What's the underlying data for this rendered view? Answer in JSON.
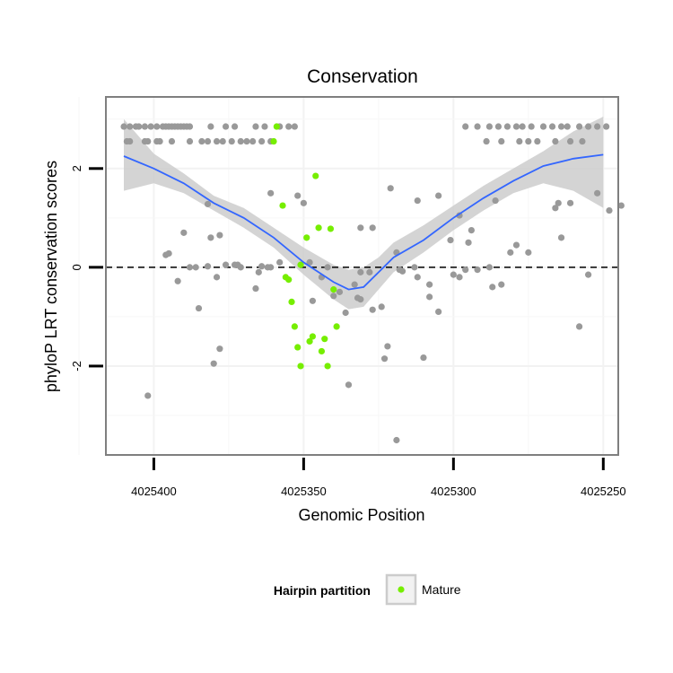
{
  "chart_data": {
    "type": "scatter",
    "title": "Conservation",
    "xlabel": "Genomic Position",
    "ylabel": "phyloP LRT conservation scores",
    "x_reversed": true,
    "xlim": [
      4025416,
      4025245
    ],
    "ylim": [
      -3.8,
      3.45
    ],
    "x_ticks": [
      4025400,
      4025350,
      4025300,
      4025250
    ],
    "x_tick_labels": [
      "4025400",
      "4025350",
      "4025300",
      "4025250"
    ],
    "y_ticks": [
      -2,
      0,
      2
    ],
    "y_tick_labels": [
      "-2",
      "0",
      "2"
    ],
    "reference_line": {
      "y": 0,
      "style": "dashed"
    },
    "grid": true,
    "legend": {
      "title": "Hairpin partition",
      "position": "bottom",
      "entries": [
        {
          "label": "Mature",
          "color": "#76ee00"
        }
      ]
    },
    "colors": {
      "other": "#999999",
      "mature": "#76ee00",
      "smooth_line": "#3366ff",
      "smooth_band": "#cccccc",
      "panel_border": "#7f7f7f",
      "grid": "#f2f2f2"
    },
    "series": [
      {
        "name": "",
        "color": "#999999",
        "points": [
          [
            4025410,
            2.85
          ],
          [
            4025408,
            2.85
          ],
          [
            4025406,
            2.85
          ],
          [
            4025405,
            2.85
          ],
          [
            4025403,
            2.85
          ],
          [
            4025401,
            2.85
          ],
          [
            4025399,
            2.85
          ],
          [
            4025397,
            2.85
          ],
          [
            4025396,
            2.85
          ],
          [
            4025395,
            2.85
          ],
          [
            4025394,
            2.85
          ],
          [
            4025393,
            2.85
          ],
          [
            4025392,
            2.85
          ],
          [
            4025391,
            2.85
          ],
          [
            4025390,
            2.85
          ],
          [
            4025389,
            2.85
          ],
          [
            4025388,
            2.85
          ],
          [
            4025409,
            2.55
          ],
          [
            4025408,
            2.55
          ],
          [
            4025403,
            2.55
          ],
          [
            4025402,
            2.55
          ],
          [
            4025399,
            2.55
          ],
          [
            4025398,
            2.55
          ],
          [
            4025394,
            2.55
          ],
          [
            4025388,
            2.55
          ],
          [
            4025381,
            2.85
          ],
          [
            4025376,
            2.85
          ],
          [
            4025373,
            2.85
          ],
          [
            4025366,
            2.85
          ],
          [
            4025363,
            2.85
          ],
          [
            4025358,
            2.85
          ],
          [
            4025355,
            2.85
          ],
          [
            4025353,
            2.85
          ],
          [
            4025384,
            2.55
          ],
          [
            4025382,
            2.55
          ],
          [
            4025379,
            2.55
          ],
          [
            4025377,
            2.55
          ],
          [
            4025374,
            2.55
          ],
          [
            4025371,
            2.55
          ],
          [
            4025369,
            2.55
          ],
          [
            4025367,
            2.55
          ],
          [
            4025364,
            2.55
          ],
          [
            4025361,
            2.55
          ],
          [
            4025296,
            2.85
          ],
          [
            4025292,
            2.85
          ],
          [
            4025288,
            2.85
          ],
          [
            4025285,
            2.85
          ],
          [
            4025282,
            2.85
          ],
          [
            4025279,
            2.85
          ],
          [
            4025277,
            2.85
          ],
          [
            4025274,
            2.85
          ],
          [
            4025270,
            2.85
          ],
          [
            4025267,
            2.85
          ],
          [
            4025264,
            2.85
          ],
          [
            4025289,
            2.55
          ],
          [
            4025284,
            2.55
          ],
          [
            4025278,
            2.55
          ],
          [
            4025275,
            2.55
          ],
          [
            4025272,
            2.55
          ],
          [
            4025266,
            2.55
          ],
          [
            4025261,
            2.55
          ],
          [
            4025257,
            2.55
          ],
          [
            4025262,
            2.85
          ],
          [
            4025258,
            2.85
          ],
          [
            4025255,
            2.85
          ],
          [
            4025252,
            2.85
          ],
          [
            4025249,
            2.85
          ],
          [
            4025361,
            1.5
          ],
          [
            4025382,
            1.28
          ],
          [
            4025373,
            0.05
          ],
          [
            4025372,
            0.05
          ],
          [
            4025395,
            0.28
          ],
          [
            4025396,
            0.25
          ],
          [
            4025392,
            -0.28
          ],
          [
            4025390,
            0.7
          ],
          [
            4025388,
            0.0
          ],
          [
            4025382,
            0.02
          ],
          [
            4025378,
            0.65
          ],
          [
            4025379,
            -0.2
          ],
          [
            4025385,
            -0.83
          ],
          [
            4025378,
            -1.65
          ],
          [
            4025376,
            0.05
          ],
          [
            4025366,
            -0.43
          ],
          [
            4025361,
            0.0
          ],
          [
            4025365,
            -0.1
          ],
          [
            4025364,
            0.02
          ],
          [
            4025362,
            0.0
          ],
          [
            4025352,
            1.45
          ],
          [
            4025350,
            1.3
          ],
          [
            4025348,
            0.1
          ],
          [
            4025347,
            -0.68
          ],
          [
            4025344,
            -0.2
          ],
          [
            4025338,
            -0.5
          ],
          [
            4025340,
            -0.58
          ],
          [
            4025336,
            -0.92
          ],
          [
            4025333,
            -0.35
          ],
          [
            4025335,
            -2.38
          ],
          [
            4025331,
            -0.65
          ],
          [
            4025331,
            -0.1
          ],
          [
            4025332,
            -0.62
          ],
          [
            4025327,
            -0.86
          ],
          [
            4025321,
            1.6
          ],
          [
            4025327,
            0.8
          ],
          [
            4025324,
            -0.8
          ],
          [
            4025323,
            -1.85
          ],
          [
            4025322,
            -1.6
          ],
          [
            4025319,
            0.3
          ],
          [
            4025318,
            -0.05
          ],
          [
            4025317,
            -0.08
          ],
          [
            4025313,
            0.0
          ],
          [
            4025312,
            -0.2
          ],
          [
            4025308,
            -0.6
          ],
          [
            4025305,
            -0.9
          ],
          [
            4025298,
            1.05
          ],
          [
            4025295,
            0.5
          ],
          [
            4025292,
            -0.05
          ],
          [
            4025287,
            -0.4
          ],
          [
            4025284,
            -0.35
          ],
          [
            4025281,
            0.3
          ],
          [
            4025279,
            0.45
          ],
          [
            4025275,
            0.3
          ],
          [
            4025266,
            1.2
          ],
          [
            4025264,
            0.6
          ],
          [
            4025261,
            1.3
          ],
          [
            4025258,
            -1.2
          ],
          [
            4025255,
            -0.15
          ],
          [
            4025252,
            1.5
          ],
          [
            4025248,
            1.15
          ],
          [
            4025244,
            1.25
          ],
          [
            4025288,
            0.0
          ],
          [
            4025312,
            1.35
          ],
          [
            4025305,
            1.45
          ],
          [
            4025300,
            -0.15
          ],
          [
            4025310,
            -1.83
          ],
          [
            4025294,
            0.75
          ],
          [
            4025286,
            1.35
          ],
          [
            4025265,
            1.3
          ],
          [
            4025402,
            -2.6
          ],
          [
            4025380,
            -1.95
          ],
          [
            4025386,
            0.0
          ],
          [
            4025298,
            -0.2
          ],
          [
            4025319,
            -3.5
          ],
          [
            4025296,
            -0.05
          ],
          [
            4025331,
            0.8
          ],
          [
            4025371,
            0.0
          ],
          [
            4025358,
            0.1
          ],
          [
            4025342,
            0.0
          ],
          [
            4025381,
            0.6
          ],
          [
            4025328,
            -0.1
          ],
          [
            4025301,
            0.55
          ],
          [
            4025308,
            -0.35
          ]
        ]
      },
      {
        "name": "Mature",
        "color": "#76ee00",
        "points": [
          [
            4025359,
            2.85
          ],
          [
            4025360,
            2.55
          ],
          [
            4025357,
            1.25
          ],
          [
            4025356,
            -0.2
          ],
          [
            4025355,
            -0.25
          ],
          [
            4025354,
            -0.7
          ],
          [
            4025353,
            -1.2
          ],
          [
            4025352,
            -1.62
          ],
          [
            4025351,
            -2.0
          ],
          [
            4025349,
            0.6
          ],
          [
            4025348,
            -1.5
          ],
          [
            4025347,
            -1.4
          ],
          [
            4025346,
            1.85
          ],
          [
            4025345,
            0.8
          ],
          [
            4025344,
            -1.7
          ],
          [
            4025343,
            -1.45
          ],
          [
            4025342,
            -2.0
          ],
          [
            4025341,
            0.78
          ],
          [
            4025340,
            -0.45
          ],
          [
            4025339,
            -1.2
          ],
          [
            4025351,
            0.05
          ]
        ]
      }
    ],
    "smooth": {
      "method": "loess",
      "x": [
        4025410,
        4025400,
        4025390,
        4025380,
        4025370,
        4025360,
        4025350,
        4025340,
        4025335,
        4025330,
        4025325,
        4025320,
        4025310,
        4025300,
        4025290,
        4025280,
        4025270,
        4025260,
        4025250
      ],
      "y": [
        2.25,
        2.0,
        1.7,
        1.3,
        1.0,
        0.6,
        0.1,
        -0.3,
        -0.45,
        -0.4,
        -0.1,
        0.2,
        0.55,
        1.0,
        1.4,
        1.75,
        2.05,
        2.2,
        2.28
      ],
      "lower": [
        1.55,
        1.7,
        1.5,
        1.15,
        0.8,
        0.4,
        -0.15,
        -0.65,
        -0.85,
        -0.8,
        -0.45,
        -0.1,
        0.3,
        0.75,
        1.15,
        1.5,
        1.7,
        1.55,
        1.2
      ],
      "upper": [
        3.0,
        2.3,
        1.9,
        1.45,
        1.2,
        0.8,
        0.4,
        0.05,
        -0.05,
        0.0,
        0.2,
        0.5,
        0.85,
        1.25,
        1.65,
        2.0,
        2.35,
        2.75,
        3.05
      ]
    }
  }
}
